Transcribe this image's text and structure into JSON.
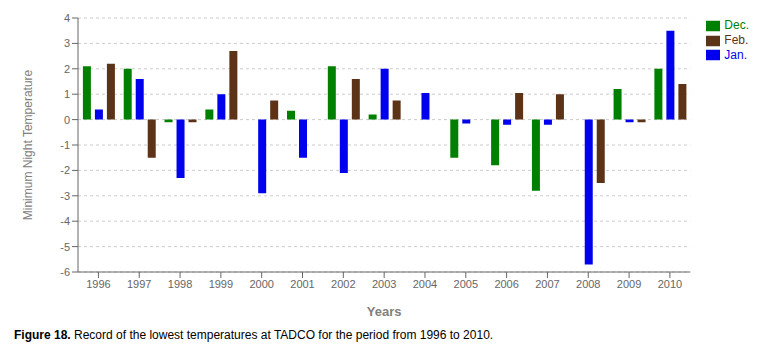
{
  "chart_data": {
    "type": "bar",
    "x_label": "Years",
    "y_label": "Minimum Night Temperature",
    "categories": [
      "1996",
      "1997",
      "1998",
      "1999",
      "2000",
      "2001",
      "2002",
      "2003",
      "2004",
      "2005",
      "2006",
      "2007",
      "2008",
      "2009",
      "2010"
    ],
    "series": [
      {
        "name": "Dec.",
        "color": "#008000",
        "values": [
          2.1,
          2.0,
          -0.1,
          0.4,
          0.0,
          0.35,
          2.1,
          0.2,
          0.0,
          -1.5,
          -1.8,
          -2.8,
          0.0,
          1.2,
          2.0
        ]
      },
      {
        "name": "Jan.",
        "color": "#0000EE",
        "values": [
          0.4,
          1.6,
          -2.3,
          1.0,
          -2.9,
          -1.5,
          -2.1,
          2.0,
          1.05,
          -0.15,
          -0.2,
          -0.2,
          -5.7,
          -0.1,
          3.5
        ]
      },
      {
        "name": "Feb.",
        "color": "#5C3317",
        "values": [
          2.2,
          -1.5,
          -0.1,
          2.7,
          0.75,
          0.0,
          1.6,
          0.75,
          0.0,
          0.0,
          1.05,
          1.0,
          -2.5,
          -0.1,
          1.4
        ]
      }
    ],
    "ylim": [
      -6,
      4
    ],
    "yticks": [
      -6,
      -5,
      -4,
      -3,
      -2,
      -1,
      0,
      1,
      2,
      3,
      4
    ],
    "grid": true,
    "legend": "right",
    "annotations": [
      "Figure 18.",
      "Record of the lowest temperatures at TADCO for the period from 1996 to 2010."
    ]
  }
}
